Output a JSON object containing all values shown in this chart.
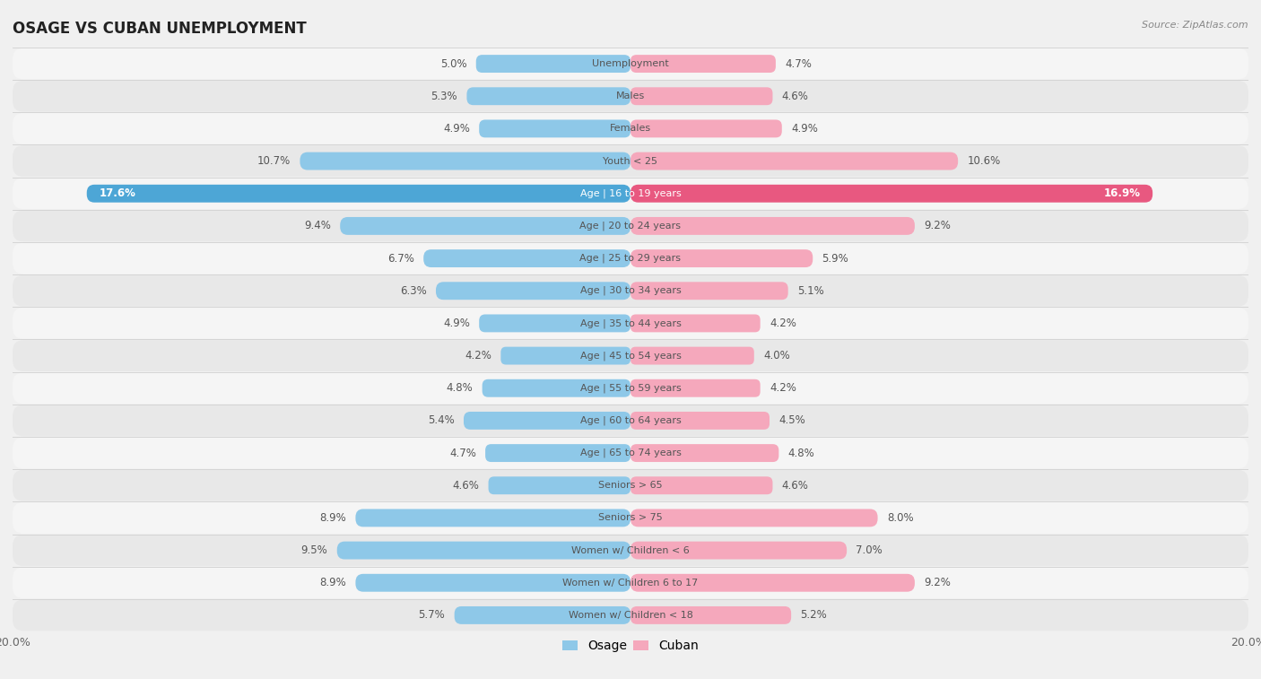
{
  "title": "OSAGE VS CUBAN UNEMPLOYMENT",
  "source": "Source: ZipAtlas.com",
  "categories": [
    "Unemployment",
    "Males",
    "Females",
    "Youth < 25",
    "Age | 16 to 19 years",
    "Age | 20 to 24 years",
    "Age | 25 to 29 years",
    "Age | 30 to 34 years",
    "Age | 35 to 44 years",
    "Age | 45 to 54 years",
    "Age | 55 to 59 years",
    "Age | 60 to 64 years",
    "Age | 65 to 74 years",
    "Seniors > 65",
    "Seniors > 75",
    "Women w/ Children < 6",
    "Women w/ Children 6 to 17",
    "Women w/ Children < 18"
  ],
  "osage_values": [
    5.0,
    5.3,
    4.9,
    10.7,
    17.6,
    9.4,
    6.7,
    6.3,
    4.9,
    4.2,
    4.8,
    5.4,
    4.7,
    4.6,
    8.9,
    9.5,
    8.9,
    5.7
  ],
  "cuban_values": [
    4.7,
    4.6,
    4.9,
    10.6,
    16.9,
    9.2,
    5.9,
    5.1,
    4.2,
    4.0,
    4.2,
    4.5,
    4.8,
    4.6,
    8.0,
    7.0,
    9.2,
    5.2
  ],
  "osage_color": "#8ec8e8",
  "cuban_color": "#f5a8bc",
  "osage_highlight_color": "#4da6d6",
  "cuban_highlight_color": "#e85880",
  "highlight_index": 4,
  "max_value": 20.0,
  "background_color": "#f0f0f0",
  "row_bg_even": "#f5f5f5",
  "row_bg_odd": "#e8e8e8",
  "label_color": "#555555",
  "value_color": "#555555"
}
